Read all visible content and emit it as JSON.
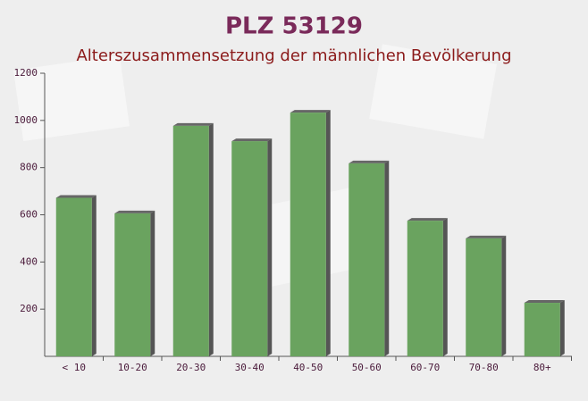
{
  "chart_data": {
    "type": "bar",
    "title": "PLZ 53129",
    "subtitle": "Alterszusammensetzung der männlichen Bevölkerung",
    "categories": [
      "< 10",
      "10-20",
      "20-30",
      "30-40",
      "40-50",
      "50-60",
      "60-70",
      "70-80",
      "80+"
    ],
    "values": [
      672,
      606,
      977,
      912,
      1033,
      818,
      575,
      500,
      227
    ],
    "color": "#6aa35f",
    "ylim": [
      0,
      1200
    ],
    "yticks": [
      200,
      400,
      600,
      800,
      1000,
      1200
    ]
  }
}
